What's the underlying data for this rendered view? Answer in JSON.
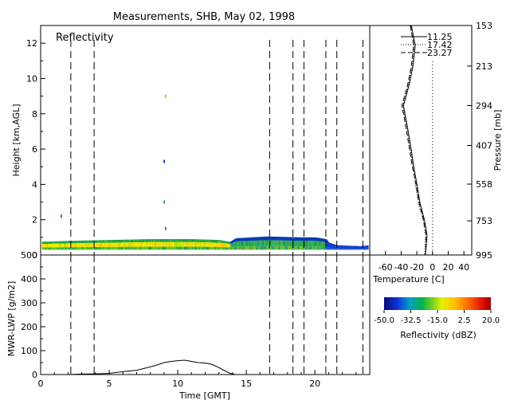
{
  "chart_data": [
    {
      "type": "heatmap",
      "title": "Measurements, SHB, May 02, 1998",
      "panel_label": "Reflectivity",
      "ylabel": "Height [km,AGL]",
      "ylim": [
        0,
        13
      ],
      "yticks": [
        0,
        2,
        4,
        6,
        8,
        10,
        12
      ],
      "xlim": [
        0,
        24
      ],
      "colorbar": {
        "label": "Reflectivity (dBZ)",
        "range": [
          -50,
          20
        ],
        "tick_labels": [
          "-50.0",
          "-32.5",
          "-15.0",
          "2.5",
          "20.0"
        ]
      },
      "cloud_layer": {
        "base_km": 0.3,
        "tops": [
          {
            "x": 0.1,
            "top_km": 0.75
          },
          {
            "x": 2.0,
            "top_km": 0.8
          },
          {
            "x": 5.0,
            "top_km": 0.85
          },
          {
            "x": 8.0,
            "top_km": 0.9
          },
          {
            "x": 11.0,
            "top_km": 0.9
          },
          {
            "x": 13.0,
            "top_km": 0.85
          },
          {
            "x": 13.8,
            "top_km": 0.75
          },
          {
            "x": 14.2,
            "top_km": 0.95
          },
          {
            "x": 16.5,
            "top_km": 1.05
          },
          {
            "x": 19.0,
            "top_km": 1.0
          },
          {
            "x": 20.0,
            "top_km": 1.0
          },
          {
            "x": 20.8,
            "top_km": 0.9
          },
          {
            "x": 21.0,
            "top_km": 0.7
          },
          {
            "x": 21.6,
            "top_km": 0.55
          },
          {
            "x": 23.3,
            "top_km": 0.5
          },
          {
            "x": 23.9,
            "top_km": 0.55
          }
        ]
      },
      "scatter_echoes": [
        {
          "x": 1.5,
          "y": 2.2,
          "color": "#2e8b57"
        },
        {
          "x": 9.1,
          "y": 9.0,
          "color": "#aadd00"
        },
        {
          "x": 9.0,
          "y": 5.3,
          "color": "#1e40c0"
        },
        {
          "x": 9.0,
          "y": 3.0,
          "color": "#33aa44"
        },
        {
          "x": 9.1,
          "y": 1.5,
          "color": "#3a8a5a"
        }
      ],
      "event_lines": [
        2.2,
        3.9,
        16.7,
        18.4,
        19.2,
        20.8,
        21.6,
        23.5
      ]
    },
    {
      "type": "line",
      "ylabel": "MWR-LWP [g/m2]",
      "xlabel": "Time [GMT]",
      "xlim": [
        0,
        24
      ],
      "xticks": [
        0,
        5,
        10,
        15,
        20
      ],
      "ylim": [
        0,
        500
      ],
      "yticks": [
        0,
        100,
        200,
        300,
        400,
        500
      ],
      "series": [
        {
          "x": [
            2.0,
            3.0,
            4.0,
            5.0,
            6.0,
            7.0,
            7.5,
            8.0,
            8.5,
            9.0,
            9.5,
            10.0,
            10.5,
            11.0,
            11.5,
            12.0,
            12.3,
            12.6,
            12.9,
            13.3,
            13.8,
            14.2
          ],
          "y": [
            0,
            2,
            3,
            5,
            12,
            18,
            25,
            32,
            40,
            50,
            55,
            58,
            60,
            55,
            50,
            48,
            45,
            40,
            32,
            20,
            5,
            0
          ]
        }
      ],
      "event_lines": [
        2.2,
        3.9,
        16.7,
        18.4,
        19.2,
        20.8,
        21.6,
        23.5
      ]
    },
    {
      "type": "line",
      "xlabel": "Temperature [C]",
      "ylabel_right": "Pressure [mb]",
      "xlim": [
        -80,
        50
      ],
      "xticks": [
        -60,
        -40,
        -20,
        0,
        20,
        40
      ],
      "pressure_ticks": [
        153,
        213,
        294,
        407,
        558,
        753,
        995
      ],
      "legend": [
        "11.25",
        "17.42",
        "23.27"
      ],
      "series": [
        {
          "name": "11.25",
          "points": [
            [
              -27,
              153
            ],
            [
              -22,
              180
            ],
            [
              -25,
              213
            ],
            [
              -30,
              250
            ],
            [
              -37,
              294
            ],
            [
              -32,
              350
            ],
            [
              -28,
              407
            ],
            [
              -24,
              480
            ],
            [
              -20,
              558
            ],
            [
              -16,
              650
            ],
            [
              -10,
              753
            ],
            [
              -7,
              850
            ],
            [
              -9,
              995
            ]
          ]
        },
        {
          "name": "17.42",
          "points": [
            [
              -29,
              153
            ],
            [
              -23,
              180
            ],
            [
              -26,
              213
            ],
            [
              -31,
              250
            ],
            [
              -38,
              294
            ],
            [
              -33,
              350
            ],
            [
              -29,
              407
            ],
            [
              -25,
              480
            ],
            [
              -22,
              558
            ],
            [
              -18,
              650
            ],
            [
              -12,
              753
            ],
            [
              -9,
              850
            ],
            [
              -10,
              995
            ]
          ]
        },
        {
          "name": "23.27",
          "points": [
            [
              -28,
              153
            ],
            [
              -24,
              180
            ],
            [
              -27,
              213
            ],
            [
              -32,
              250
            ],
            [
              -39,
              294
            ],
            [
              -34,
              350
            ],
            [
              -30,
              407
            ],
            [
              -26,
              480
            ],
            [
              -21,
              558
            ],
            [
              -17,
              650
            ],
            [
              -11,
              753
            ],
            [
              -8,
              850
            ],
            [
              -9,
              995
            ]
          ]
        }
      ],
      "reference_line_x": 0
    }
  ]
}
